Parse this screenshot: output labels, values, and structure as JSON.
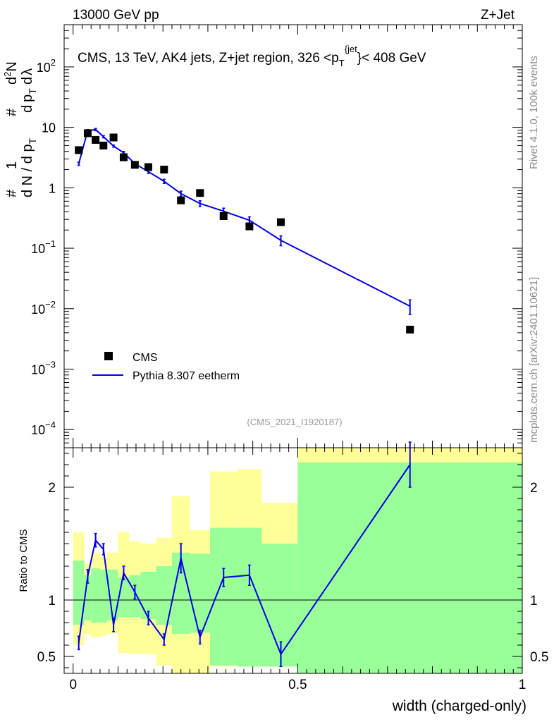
{
  "header": {
    "beam": "13000 GeV pp",
    "process": "Z+Jet",
    "title_main": "CMS, 13 TeV, AK4 jets, Z+jet region, 326 <p",
    "title_sub": "T",
    "title_sup": "{jet",
    "title_end": "}< 408 GeV",
    "rivet": "Rivet 4.1.0,  100k events",
    "mcplots": "mcplots.cern.ch [arXiv:2401.10621]",
    "analysis": "(CMS_2021_I1920187)"
  },
  "legend": {
    "data_label": "CMS",
    "mc_label": "Pythia 8.307 eetherm",
    "position": "middle-left"
  },
  "colors": {
    "data": "#000000",
    "mc": "#0000e6",
    "band_inner": "#99ff99",
    "band_outer": "#ffff99",
    "axis": "#000000"
  },
  "chart_data": [
    {
      "type": "scatter",
      "panel": "main",
      "yscale": "log",
      "ylabel_parts": [
        "#",
        "1",
        "d N / d p",
        "T",
        "#",
        "d",
        "p",
        "T",
        "d",
        "2",
        "N",
        "d",
        "λ"
      ],
      "xlim": [
        -0.02,
        1.0
      ],
      "ylim": [
        5e-05,
        500
      ],
      "ytick_base": "10",
      "yticks": [
        {
          "value": 0.0001,
          "mantissa": "10",
          "exp": "−4"
        },
        {
          "value": 0.001,
          "mantissa": "10",
          "exp": "−3"
        },
        {
          "value": 0.01,
          "mantissa": "10",
          "exp": "−2"
        },
        {
          "value": 0.1,
          "mantissa": "10",
          "exp": "−1"
        },
        {
          "value": 1,
          "mantissa": "1",
          "exp": ""
        },
        {
          "value": 10,
          "mantissa": "10",
          "exp": ""
        },
        {
          "value": 100,
          "mantissa": "10",
          "exp": "2"
        }
      ],
      "series": [
        {
          "name": "CMS",
          "x": [
            0.0125,
            0.0325,
            0.05,
            0.0675,
            0.09,
            0.1125,
            0.1375,
            0.1675,
            0.2025,
            0.24,
            0.2825,
            0.335,
            0.3925,
            0.4625,
            0.75
          ],
          "y": [
            4.2,
            8.0,
            6.2,
            5.0,
            6.8,
            3.2,
            2.4,
            2.2,
            2.0,
            0.62,
            0.82,
            0.34,
            0.23,
            0.27,
            0.0045
          ]
        },
        {
          "name": "Pythia 8.307 eetherm",
          "x": [
            0.0125,
            0.0325,
            0.05,
            0.0675,
            0.09,
            0.1125,
            0.1375,
            0.1675,
            0.2025,
            0.24,
            0.2825,
            0.335,
            0.3925,
            0.4625,
            0.75
          ],
          "y": [
            2.5,
            8.8,
            9.2,
            7.0,
            4.9,
            3.8,
            2.5,
            1.85,
            1.28,
            0.8,
            0.55,
            0.41,
            0.29,
            0.135,
            0.011
          ],
          "yerr": [
            0.15,
            0.4,
            0.4,
            0.3,
            0.2,
            0.2,
            0.15,
            0.12,
            0.1,
            0.08,
            0.06,
            0.05,
            0.04,
            0.025,
            0.003
          ]
        }
      ]
    },
    {
      "type": "line",
      "panel": "ratio",
      "ylabel": "Ratio to CMS",
      "xlabel": "width (charged-only)",
      "xlim": [
        -0.02,
        1.0
      ],
      "ylim": [
        0.35,
        2.35
      ],
      "xticks": [
        {
          "value": 0,
          "label": "0"
        },
        {
          "value": 0.5,
          "label": "0.5"
        },
        {
          "value": 1,
          "label": "1"
        }
      ],
      "yticks": [
        {
          "value": 0.5,
          "label": "0.5"
        },
        {
          "value": 1,
          "label": "1"
        },
        {
          "value": 2,
          "label": "2"
        }
      ],
      "reference_line": 1,
      "bins": [
        {
          "lo": 0.0,
          "hi": 0.025,
          "inner": [
            0.78,
            1.35
          ],
          "outer": [
            0.6,
            1.6
          ]
        },
        {
          "lo": 0.025,
          "hi": 0.04,
          "inner": [
            0.82,
            1.22
          ],
          "outer": [
            0.7,
            1.32
          ]
        },
        {
          "lo": 0.04,
          "hi": 0.06,
          "inner": [
            0.8,
            1.28
          ],
          "outer": [
            0.67,
            1.42
          ]
        },
        {
          "lo": 0.06,
          "hi": 0.075,
          "inner": [
            0.8,
            1.27
          ],
          "outer": [
            0.68,
            1.38
          ]
        },
        {
          "lo": 0.075,
          "hi": 0.1,
          "inner": [
            0.82,
            1.27
          ],
          "outer": [
            0.7,
            1.42
          ]
        },
        {
          "lo": 0.1,
          "hi": 0.125,
          "inner": [
            0.85,
            1.2
          ],
          "outer": [
            0.53,
            1.6
          ]
        },
        {
          "lo": 0.125,
          "hi": 0.15,
          "inner": [
            0.85,
            1.22
          ],
          "outer": [
            0.52,
            1.52
          ]
        },
        {
          "lo": 0.15,
          "hi": 0.185,
          "inner": [
            0.83,
            1.25
          ],
          "outer": [
            0.52,
            1.5
          ]
        },
        {
          "lo": 0.185,
          "hi": 0.22,
          "inner": [
            0.78,
            1.3
          ],
          "outer": [
            0.42,
            1.55
          ]
        },
        {
          "lo": 0.22,
          "hi": 0.26,
          "inner": [
            0.7,
            1.42
          ],
          "outer": [
            0.34,
            1.92
          ]
        },
        {
          "lo": 0.26,
          "hi": 0.305,
          "inner": [
            0.71,
            1.41
          ],
          "outer": [
            0.34,
            1.62
          ]
        },
        {
          "lo": 0.305,
          "hi": 0.365,
          "inner": [
            0.42,
            1.64
          ],
          "outer": [
            0.41,
            2.14
          ]
        },
        {
          "lo": 0.365,
          "hi": 0.42,
          "inner": [
            0.41,
            1.64
          ],
          "outer": [
            0.41,
            2.16
          ]
        },
        {
          "lo": 0.42,
          "hi": 0.5,
          "inner": [
            0.41,
            1.5
          ],
          "outer": [
            0.41,
            1.86
          ]
        },
        {
          "lo": 0.5,
          "hi": 1.0,
          "inner": [
            0.35,
            2.22
          ],
          "outer": [
            0.35,
            2.35
          ]
        }
      ],
      "x": [
        0.0125,
        0.0325,
        0.05,
        0.0675,
        0.09,
        0.1125,
        0.1375,
        0.1675,
        0.2025,
        0.24,
        0.2825,
        0.335,
        0.3925,
        0.4625,
        0.75
      ],
      "y": [
        0.62,
        1.21,
        1.53,
        1.45,
        0.78,
        1.24,
        1.07,
        0.84,
        0.65,
        1.37,
        0.67,
        1.2,
        1.22,
        0.52,
        2.2
      ],
      "yerr": [
        0.06,
        0.06,
        0.06,
        0.05,
        0.06,
        0.06,
        0.06,
        0.06,
        0.05,
        0.13,
        0.06,
        0.08,
        0.09,
        0.11,
        0.2
      ]
    }
  ]
}
